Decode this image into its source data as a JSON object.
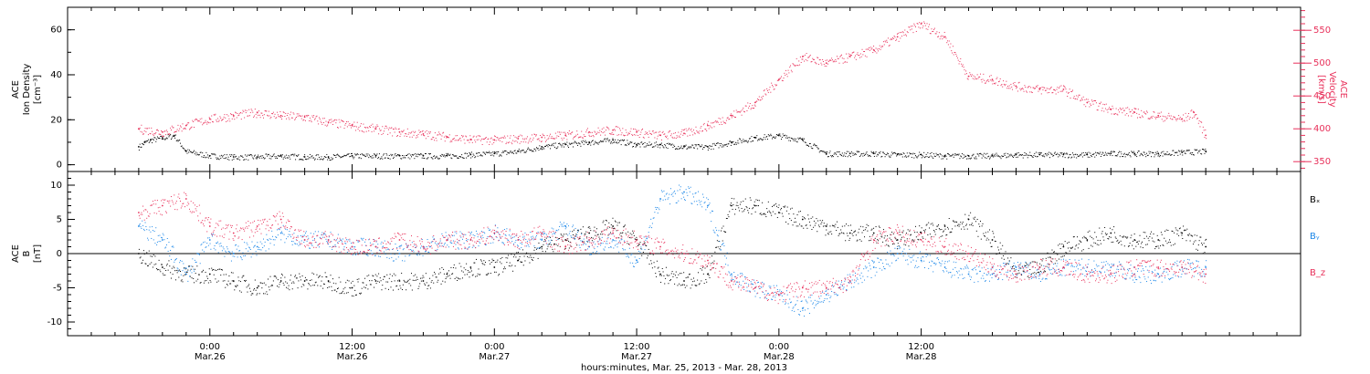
{
  "chart_data": [
    {
      "type": "scatter",
      "panel": "plasma",
      "ylabel_left": [
        "ACE",
        "Ion Density",
        "[cm⁻³]"
      ],
      "ylabel_right": [
        "ACE",
        "Velocity",
        "[km/s]"
      ],
      "ylim_left": [
        -3,
        70
      ],
      "ylim_right": [
        335,
        585
      ],
      "yticks_left": [
        0,
        20,
        40,
        60
      ],
      "yticks_right": [
        350,
        400,
        450,
        500,
        550
      ],
      "series": [
        {
          "axis": "left",
          "color": "#000000",
          "x": [
            0,
            0.5,
            1,
            2,
            3,
            4,
            6,
            8,
            10,
            12,
            14,
            16,
            18,
            20,
            22,
            24,
            26,
            28,
            30,
            32,
            34,
            36,
            38,
            40,
            42,
            44,
            46,
            48,
            50,
            52,
            54,
            56,
            58,
            60,
            62,
            64,
            66,
            68,
            70,
            72,
            74,
            76,
            78,
            80,
            82,
            84,
            86,
            88,
            90
          ],
          "y": [
            8,
            10,
            11,
            12,
            13,
            6,
            4,
            3.5,
            3.5,
            4,
            3.5,
            3.5,
            4,
            4,
            4,
            4,
            4,
            4.5,
            5,
            6,
            8,
            9,
            10,
            11,
            9,
            9,
            8,
            8,
            10,
            12,
            13,
            11,
            5,
            5,
            5,
            4.5,
            4.5,
            4,
            4,
            4,
            4.5,
            4.5,
            4.5,
            4.5,
            5,
            5,
            5,
            5.5,
            6
          ]
        },
        {
          "axis": "right",
          "color": "#e8305a",
          "x": [
            0,
            2,
            4,
            6,
            8,
            10,
            12,
            14,
            16,
            18,
            20,
            22,
            24,
            26,
            28,
            30,
            32,
            34,
            36,
            38,
            40,
            42,
            44,
            46,
            48,
            50,
            52,
            54,
            56,
            58,
            60,
            62,
            64,
            66,
            68,
            70,
            72,
            74,
            76,
            78,
            80,
            82,
            84,
            86,
            88,
            89,
            90
          ],
          "y": [
            400,
            395,
            405,
            415,
            420,
            425,
            420,
            418,
            410,
            405,
            400,
            395,
            392,
            388,
            384,
            383,
            385,
            387,
            390,
            395,
            398,
            395,
            390,
            393,
            405,
            420,
            440,
            475,
            510,
            500,
            510,
            520,
            540,
            560,
            540,
            480,
            475,
            465,
            460,
            460,
            440,
            430,
            425,
            420,
            415,
            425,
            390
          ]
        }
      ]
    },
    {
      "type": "scatter",
      "panel": "magnetic-field",
      "ylabel_left": [
        "ACE",
        "B",
        "[nT]"
      ],
      "ylim": [
        -12,
        12
      ],
      "yticks": [
        -10,
        -5,
        0,
        5,
        10
      ],
      "zero_line": true,
      "legend": [
        "Bₓ",
        "Bᵧ",
        "B_z"
      ],
      "series": [
        {
          "name": "Bₓ",
          "color": "#000000",
          "x": [
            0,
            2,
            4,
            6,
            8,
            10,
            12,
            14,
            16,
            18,
            20,
            22,
            24,
            26,
            28,
            30,
            32,
            34,
            36,
            38,
            40,
            42,
            44,
            46,
            48,
            50,
            52,
            54,
            56,
            58,
            60,
            62,
            64,
            66,
            68,
            70,
            72,
            74,
            76,
            78,
            80,
            82,
            84,
            86,
            88,
            90
          ],
          "y": [
            0,
            -2,
            -3,
            -3,
            -4,
            -5,
            -4,
            -4,
            -4,
            -5,
            -4,
            -4,
            -4,
            -3,
            -2,
            -2,
            -1,
            1,
            2,
            3,
            4,
            2,
            -3,
            -4,
            -3,
            7,
            7,
            6,
            5,
            4,
            3,
            3,
            2,
            3,
            4,
            5,
            2,
            -3,
            -2,
            1,
            2,
            3,
            2,
            2,
            3,
            1
          ]
        },
        {
          "name": "Bᵧ",
          "color": "#1a86e8",
          "x": [
            0,
            2,
            4,
            6,
            8,
            10,
            12,
            14,
            16,
            18,
            20,
            22,
            24,
            26,
            28,
            30,
            32,
            34,
            36,
            38,
            40,
            42,
            44,
            46,
            48,
            50,
            52,
            54,
            56,
            58,
            60,
            62,
            64,
            66,
            68,
            70,
            72,
            74,
            76,
            78,
            80,
            82,
            84,
            86,
            88,
            90
          ],
          "y": [
            4,
            2,
            -3,
            2,
            0,
            1,
            3,
            2,
            2,
            1,
            1,
            0,
            1,
            2,
            2,
            3,
            2,
            2,
            4,
            1,
            2,
            -1,
            8,
            9,
            7,
            -3,
            -5,
            -6,
            -8,
            -6,
            -4,
            -2,
            0,
            -1,
            -2,
            -3,
            -3,
            -2,
            -3,
            -2,
            -2,
            -2,
            -3,
            -3,
            -2,
            -2
          ]
        },
        {
          "name": "B_z",
          "color": "#e8305a",
          "x": [
            0,
            2,
            4,
            6,
            8,
            10,
            12,
            14,
            16,
            18,
            20,
            22,
            24,
            26,
            28,
            30,
            32,
            34,
            36,
            38,
            40,
            42,
            44,
            46,
            48,
            50,
            52,
            54,
            56,
            58,
            60,
            62,
            64,
            66,
            68,
            70,
            72,
            74,
            76,
            78,
            80,
            82,
            84,
            86,
            88,
            90
          ],
          "y": [
            6,
            7,
            8,
            4,
            3,
            4,
            5,
            2,
            2,
            1,
            1,
            2,
            1,
            2,
            2,
            3,
            2,
            3,
            1,
            2,
            3,
            2,
            1,
            0,
            -1,
            -4,
            -5,
            -6,
            -5,
            -5,
            -4,
            2,
            3,
            2,
            1,
            0,
            -2,
            -3,
            -2,
            -2,
            -3,
            -3,
            -2,
            -2,
            -2,
            -3
          ]
        }
      ]
    }
  ],
  "xaxis": {
    "xlabel": "hours:minutes, Mar. 25, 2013 - Mar. 28, 2013",
    "xlim": [
      -6,
      98
    ],
    "ticks": [
      {
        "x": 6,
        "line1": "0:00",
        "line2": "Mar.26"
      },
      {
        "x": 18,
        "line1": "12:00",
        "line2": "Mar.26"
      },
      {
        "x": 30,
        "line1": "0:00",
        "line2": "Mar.27"
      },
      {
        "x": 42,
        "line1": "12:00",
        "line2": "Mar.27"
      },
      {
        "x": 54,
        "line1": "0:00",
        "line2": "Mar.28"
      },
      {
        "x": 66,
        "line1": "12:00",
        "line2": "Mar.28"
      }
    ],
    "minor_step": 2
  }
}
